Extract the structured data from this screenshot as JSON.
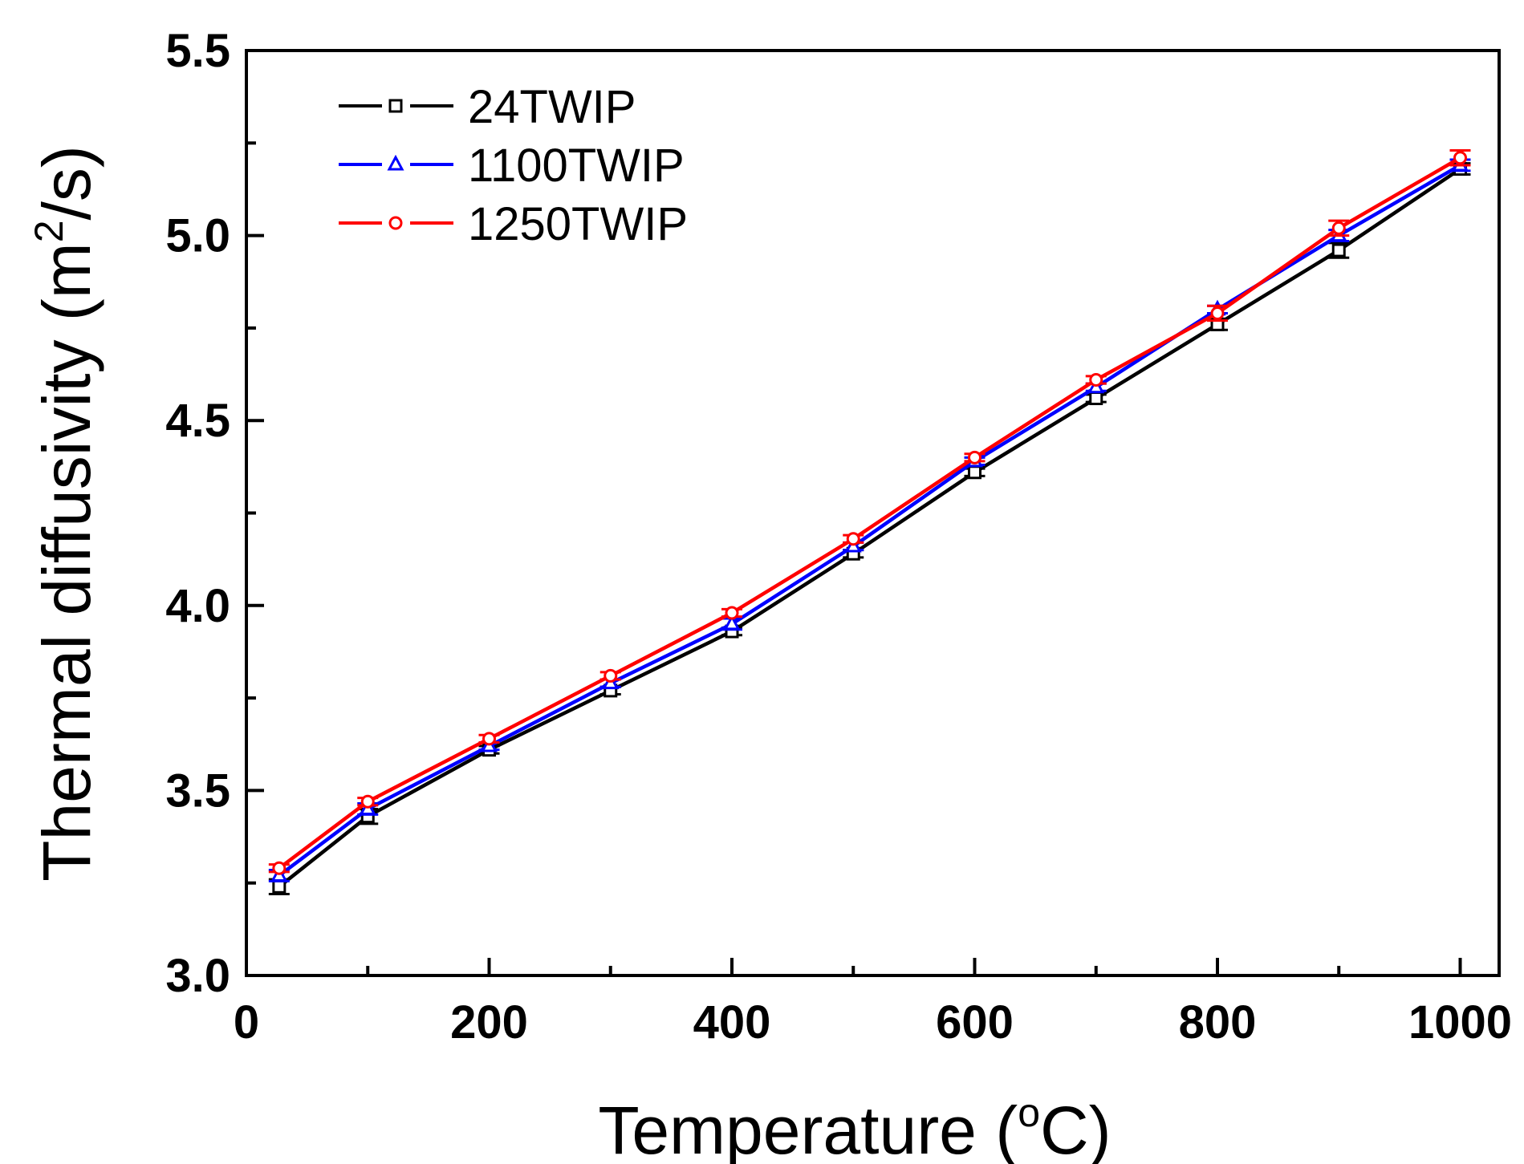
{
  "chart_data": {
    "type": "line",
    "title": "",
    "xlabel": "Temperature (°C)",
    "xlabel_parts": {
      "main": "Temperature (",
      "sup": "o",
      "tail": "C)"
    },
    "ylabel": "Thermal diffusivity (m²/s)",
    "ylabel_parts": {
      "main": "Thermal diffusivity (m",
      "sup": "2",
      "tail": "/s)"
    },
    "xlim": [
      0,
      1030
    ],
    "ylim": [
      3.0,
      5.5
    ],
    "xticks": [
      0,
      200,
      400,
      600,
      800,
      1000
    ],
    "xtick_labels": [
      "0",
      "200",
      "400",
      "600",
      "800",
      "1000"
    ],
    "yticks": [
      3.0,
      3.5,
      4.0,
      4.5,
      5.0,
      5.5
    ],
    "ytick_labels": [
      "3.0",
      "3.5",
      "4.0",
      "4.5",
      "5.0",
      "5.5"
    ],
    "legend_position": "top-left",
    "x": [
      27,
      100,
      200,
      300,
      400,
      500,
      600,
      700,
      800,
      900,
      1000
    ],
    "series": [
      {
        "name": "24TWIP",
        "color": "#000000",
        "marker": "square",
        "values": [
          3.24,
          3.43,
          3.61,
          3.77,
          3.93,
          4.14,
          4.36,
          4.56,
          4.76,
          4.96,
          5.18
        ],
        "errors": [
          0.02,
          0.02,
          0.01,
          0.01,
          0.01,
          0.01,
          0.01,
          0.01,
          0.015,
          0.02,
          0.015
        ]
      },
      {
        "name": "1100TWIP",
        "color": "#0000ff",
        "marker": "triangle",
        "values": [
          3.27,
          3.45,
          3.62,
          3.79,
          3.95,
          4.16,
          4.39,
          4.59,
          4.8,
          5.0,
          5.19
        ],
        "errors": [
          0.015,
          0.015,
          0.01,
          0.01,
          0.015,
          0.01,
          0.01,
          0.01,
          0.01,
          0.015,
          0.015
        ]
      },
      {
        "name": "1250TWIP",
        "color": "#ff0000",
        "marker": "circle",
        "values": [
          3.29,
          3.47,
          3.64,
          3.81,
          3.98,
          4.18,
          4.4,
          4.61,
          4.79,
          5.02,
          5.21
        ],
        "errors": [
          0.01,
          0.01,
          0.01,
          0.01,
          0.01,
          0.01,
          0.01,
          0.01,
          0.02,
          0.02,
          0.02
        ]
      }
    ]
  }
}
